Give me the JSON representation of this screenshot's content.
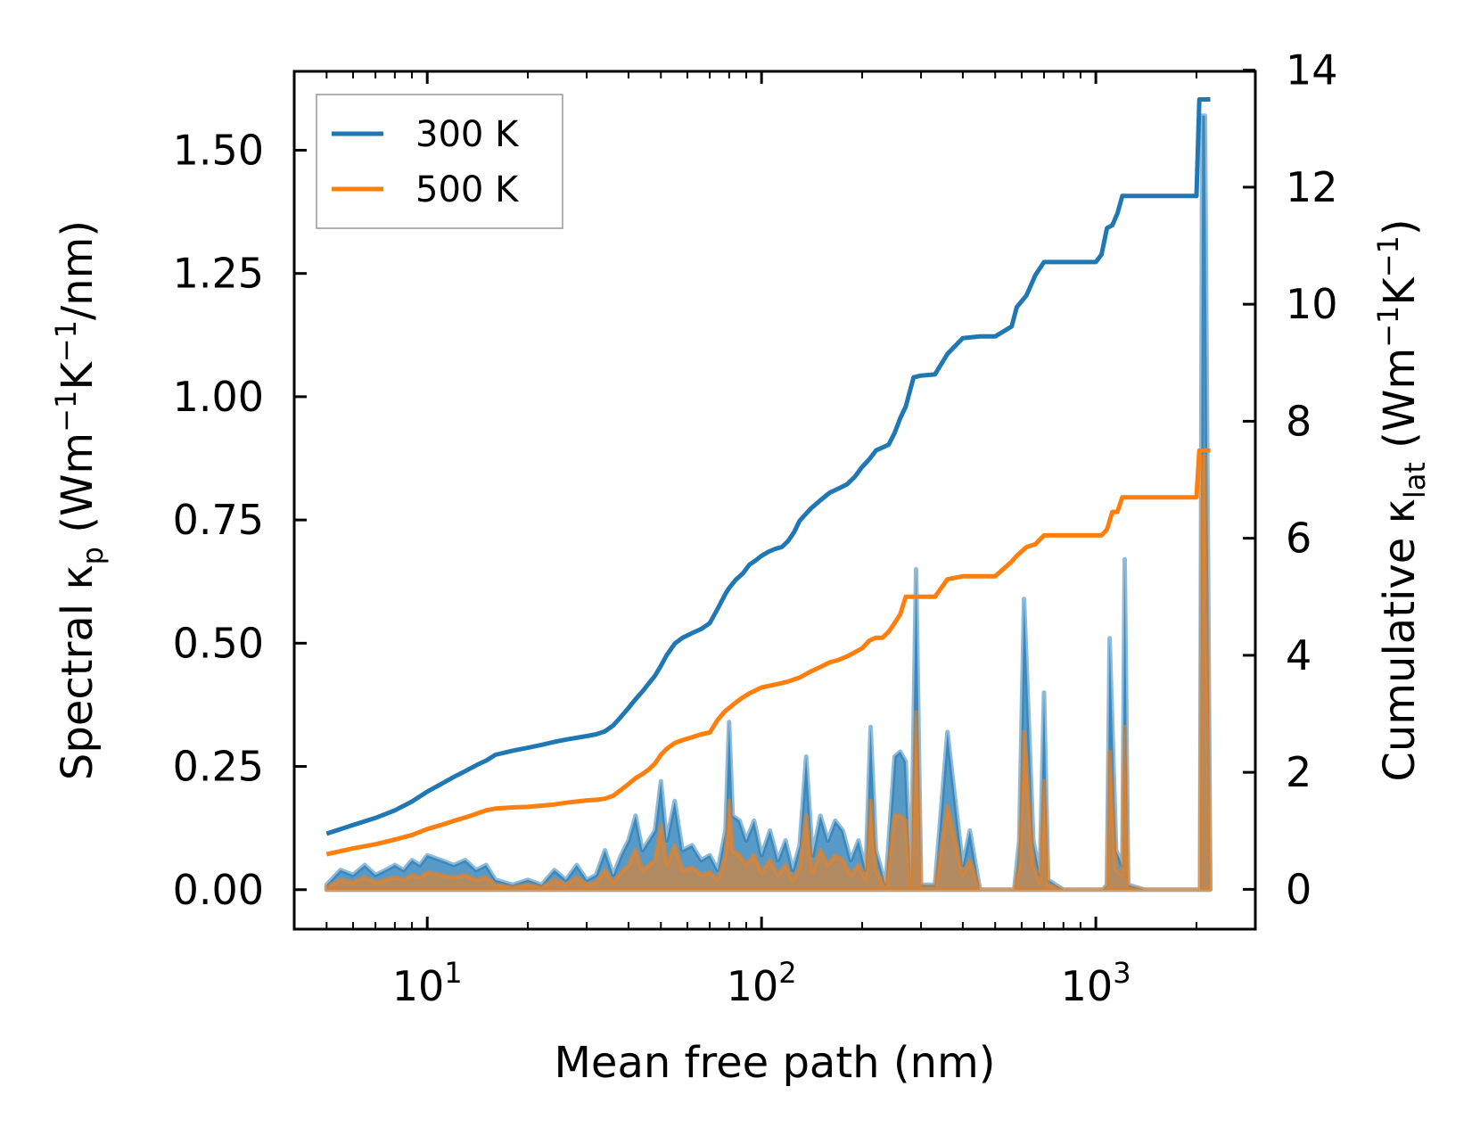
{
  "chart_data": {
    "type": "line",
    "title": "",
    "xlabel": "Mean free path (nm)",
    "ylabel": {
      "main": "Spectral κ",
      "sub": "p",
      "unit_open": " (Wm",
      "exp1": "−1",
      "mid": "K",
      "exp2": "−1",
      "unit_close": "/nm)"
    },
    "y2label": {
      "main": "Cumulative κ",
      "sub": "lat",
      "unit_open": " (Wm",
      "exp1": "−1",
      "mid": "K",
      "exp2": "−1",
      "unit_close": ")"
    },
    "xscale": "log",
    "xlim": [
      4.0,
      3000
    ],
    "ylim": [
      -0.08,
      1.66
    ],
    "y2lim": [
      -0.68,
      13.98
    ],
    "xticks": [
      {
        "base": "10",
        "exp": "1",
        "value": 10
      },
      {
        "base": "10",
        "exp": "2",
        "value": 100
      },
      {
        "base": "10",
        "exp": "3",
        "value": 1000
      }
    ],
    "yticks": [
      {
        "value": 0.0,
        "label": "0.00"
      },
      {
        "value": 0.25,
        "label": "0.25"
      },
      {
        "value": 0.5,
        "label": "0.50"
      },
      {
        "value": 0.75,
        "label": "0.75"
      },
      {
        "value": 1.0,
        "label": "1.00"
      },
      {
        "value": 1.25,
        "label": "1.25"
      },
      {
        "value": 1.5,
        "label": "1.50"
      }
    ],
    "y2ticks": [
      {
        "value": 0,
        "label": "0"
      },
      {
        "value": 2,
        "label": "2"
      },
      {
        "value": 4,
        "label": "4"
      },
      {
        "value": 6,
        "label": "6"
      },
      {
        "value": 8,
        "label": "8"
      },
      {
        "value": 10,
        "label": "10"
      },
      {
        "value": 12,
        "label": "12"
      },
      {
        "value": 14,
        "label": "14"
      }
    ],
    "legend": {
      "placement": "upper-left",
      "entries": [
        {
          "label": "300 K",
          "color": "#1f77b4"
        },
        {
          "label": "500 K",
          "color": "#ff7f0e"
        }
      ]
    },
    "series": [
      {
        "name": "300 K",
        "color": "#1f77b4",
        "cumulative_axis": "right",
        "cumulative": {
          "x": [
            5,
            6,
            7,
            8,
            9,
            10,
            11,
            12,
            13,
            14,
            15,
            16,
            18,
            20,
            22,
            24,
            26,
            28,
            30,
            32,
            34,
            36,
            38,
            40,
            42,
            44,
            46,
            48,
            50,
            52,
            55,
            58,
            62,
            66,
            70,
            74,
            78,
            80,
            84,
            88,
            92,
            96,
            100,
            105,
            110,
            115,
            120,
            125,
            130,
            140,
            150,
            160,
            170,
            180,
            190,
            200,
            210,
            220,
            230,
            240,
            250,
            260,
            270,
            285,
            300,
            330,
            360,
            400,
            450,
            500,
            560,
            580,
            620,
            660,
            700,
            800,
            900,
            1000,
            1040,
            1080,
            1120,
            1160,
            1200,
            1300,
            1500,
            1800,
            2000,
            2040,
            2100,
            2200
          ],
          "y": [
            0.95,
            1.1,
            1.22,
            1.35,
            1.5,
            1.67,
            1.8,
            1.92,
            2.02,
            2.12,
            2.2,
            2.3,
            2.37,
            2.42,
            2.47,
            2.52,
            2.56,
            2.59,
            2.62,
            2.65,
            2.7,
            2.8,
            2.95,
            3.1,
            3.25,
            3.38,
            3.52,
            3.65,
            3.82,
            4.0,
            4.2,
            4.3,
            4.38,
            4.45,
            4.55,
            4.8,
            5.05,
            5.15,
            5.3,
            5.4,
            5.55,
            5.62,
            5.7,
            5.77,
            5.82,
            5.85,
            5.95,
            6.1,
            6.3,
            6.5,
            6.65,
            6.78,
            6.85,
            6.92,
            7.05,
            7.22,
            7.35,
            7.5,
            7.55,
            7.6,
            7.8,
            8.05,
            8.25,
            8.75,
            8.78,
            8.8,
            9.15,
            9.42,
            9.45,
            9.45,
            9.62,
            9.95,
            10.15,
            10.5,
            10.72,
            10.72,
            10.72,
            10.72,
            10.85,
            11.3,
            11.35,
            11.55,
            11.85,
            11.85,
            11.85,
            11.85,
            11.85,
            13.5,
            13.5,
            13.5
          ]
        },
        "spectral": {
          "x": [
            5,
            5.5,
            6,
            6.5,
            7,
            7.5,
            8,
            8.5,
            9,
            9.5,
            10,
            11,
            12,
            13,
            14,
            15,
            16,
            18,
            20,
            22,
            24,
            26,
            28,
            30,
            32,
            34,
            36,
            38,
            40,
            42,
            44,
            46,
            48,
            50,
            52,
            55,
            58,
            62,
            66,
            70,
            74,
            78,
            80,
            82,
            86,
            90,
            95,
            100,
            106,
            112,
            118,
            124,
            130,
            136,
            142,
            150,
            158,
            166,
            175,
            185,
            195,
            205,
            212,
            220,
            235,
            250,
            260,
            270,
            280,
            290,
            300,
            330,
            360,
            380,
            400,
            420,
            450,
            500,
            550,
            570,
            590,
            610,
            650,
            680,
            700,
            720,
            800,
            900,
            1000,
            1050,
            1080,
            1100,
            1150,
            1200,
            1220,
            1250,
            1400,
            1600,
            1900,
            2000,
            2050,
            2080,
            2120,
            2200
          ],
          "y": [
            0.01,
            0.04,
            0.03,
            0.05,
            0.03,
            0.04,
            0.05,
            0.04,
            0.06,
            0.05,
            0.07,
            0.06,
            0.05,
            0.06,
            0.04,
            0.05,
            0.02,
            0.01,
            0.02,
            0.01,
            0.04,
            0.02,
            0.05,
            0.02,
            0.03,
            0.08,
            0.03,
            0.07,
            0.1,
            0.15,
            0.08,
            0.1,
            0.12,
            0.22,
            0.1,
            0.18,
            0.08,
            0.09,
            0.06,
            0.07,
            0.04,
            0.12,
            0.34,
            0.15,
            0.14,
            0.1,
            0.14,
            0.07,
            0.12,
            0.06,
            0.1,
            0.04,
            0.09,
            0.27,
            0.07,
            0.15,
            0.1,
            0.14,
            0.12,
            0.06,
            0.1,
            0.04,
            0.33,
            0.08,
            0.01,
            0.27,
            0.28,
            0.26,
            0.01,
            0.65,
            0.01,
            0.01,
            0.32,
            0.18,
            0.05,
            0.12,
            0.0,
            0.0,
            0.0,
            0.0,
            0.1,
            0.59,
            0.1,
            0.03,
            0.4,
            0.02,
            0.0,
            0.0,
            0.0,
            0.0,
            0.01,
            0.51,
            0.08,
            0.05,
            0.67,
            0.01,
            0.0,
            0.0,
            0.0,
            0.0,
            0.0,
            1.57,
            1.57,
            0.0
          ]
        }
      },
      {
        "name": "500 K",
        "color": "#ff7f0e",
        "cumulative_axis": "right",
        "cumulative": {
          "x": [
            5,
            6,
            7,
            8,
            9,
            10,
            11,
            12,
            13,
            14,
            15,
            16,
            18,
            20,
            22,
            24,
            26,
            28,
            30,
            32,
            34,
            36,
            38,
            40,
            42,
            44,
            46,
            48,
            50,
            52,
            55,
            58,
            62,
            66,
            70,
            74,
            78,
            80,
            84,
            88,
            92,
            96,
            100,
            110,
            120,
            130,
            140,
            150,
            160,
            170,
            180,
            190,
            200,
            210,
            220,
            230,
            240,
            250,
            260,
            270,
            285,
            300,
            330,
            360,
            400,
            450,
            500,
            560,
            580,
            620,
            660,
            700,
            800,
            900,
            1000,
            1040,
            1080,
            1120,
            1160,
            1200,
            1300,
            1500,
            1800,
            2000,
            2040,
            2100,
            2200
          ],
          "y": [
            0.6,
            0.7,
            0.77,
            0.85,
            0.93,
            1.03,
            1.1,
            1.17,
            1.23,
            1.29,
            1.35,
            1.38,
            1.4,
            1.41,
            1.43,
            1.45,
            1.48,
            1.5,
            1.52,
            1.53,
            1.55,
            1.6,
            1.7,
            1.8,
            1.9,
            1.97,
            2.05,
            2.15,
            2.3,
            2.4,
            2.5,
            2.55,
            2.6,
            2.65,
            2.68,
            2.9,
            3.05,
            3.1,
            3.2,
            3.28,
            3.35,
            3.4,
            3.45,
            3.5,
            3.55,
            3.62,
            3.72,
            3.8,
            3.88,
            3.92,
            3.98,
            4.05,
            4.12,
            4.25,
            4.3,
            4.3,
            4.4,
            4.55,
            4.7,
            5.0,
            5.0,
            5.0,
            5.0,
            5.3,
            5.35,
            5.35,
            5.35,
            5.6,
            5.7,
            5.85,
            5.9,
            6.05,
            6.05,
            6.05,
            6.05,
            6.05,
            6.15,
            6.45,
            6.45,
            6.7,
            6.7,
            6.7,
            6.7,
            6.7,
            7.5,
            7.5,
            7.5
          ]
        },
        "spectral": {
          "x": [
            5,
            5.5,
            6,
            6.5,
            7,
            7.5,
            8,
            8.5,
            9,
            9.5,
            10,
            11,
            12,
            13,
            14,
            15,
            16,
            18,
            20,
            22,
            24,
            26,
            28,
            30,
            32,
            34,
            36,
            38,
            40,
            42,
            44,
            46,
            48,
            50,
            52,
            55,
            58,
            62,
            66,
            70,
            74,
            78,
            80,
            82,
            86,
            90,
            95,
            100,
            106,
            112,
            118,
            124,
            130,
            136,
            142,
            150,
            158,
            166,
            175,
            185,
            195,
            205,
            212,
            220,
            235,
            250,
            260,
            270,
            280,
            290,
            300,
            330,
            360,
            380,
            400,
            420,
            450,
            500,
            550,
            570,
            590,
            610,
            650,
            680,
            700,
            720,
            800,
            900,
            1000,
            1050,
            1080,
            1100,
            1150,
            1200,
            1220,
            1250,
            1400,
            1600,
            1900,
            2000,
            2050,
            2080,
            2120,
            2200
          ],
          "y": [
            0.005,
            0.02,
            0.015,
            0.025,
            0.015,
            0.02,
            0.025,
            0.02,
            0.03,
            0.025,
            0.035,
            0.03,
            0.025,
            0.03,
            0.02,
            0.025,
            0.01,
            0.005,
            0.01,
            0.005,
            0.02,
            0.01,
            0.025,
            0.01,
            0.015,
            0.04,
            0.015,
            0.035,
            0.05,
            0.08,
            0.04,
            0.05,
            0.06,
            0.13,
            0.05,
            0.09,
            0.04,
            0.045,
            0.03,
            0.035,
            0.02,
            0.07,
            0.18,
            0.08,
            0.07,
            0.05,
            0.07,
            0.035,
            0.06,
            0.03,
            0.05,
            0.02,
            0.045,
            0.15,
            0.035,
            0.08,
            0.05,
            0.07,
            0.06,
            0.03,
            0.05,
            0.02,
            0.18,
            0.04,
            0.005,
            0.15,
            0.15,
            0.14,
            0.005,
            0.36,
            0.005,
            0.005,
            0.17,
            0.1,
            0.03,
            0.06,
            0.0,
            0.0,
            0.0,
            0.0,
            0.05,
            0.32,
            0.05,
            0.015,
            0.22,
            0.01,
            0.0,
            0.0,
            0.0,
            0.0,
            0.005,
            0.28,
            0.04,
            0.03,
            0.33,
            0.005,
            0.0,
            0.0,
            0.0,
            0.0,
            0.0,
            0.88,
            0.88,
            0.0
          ]
        }
      }
    ]
  }
}
